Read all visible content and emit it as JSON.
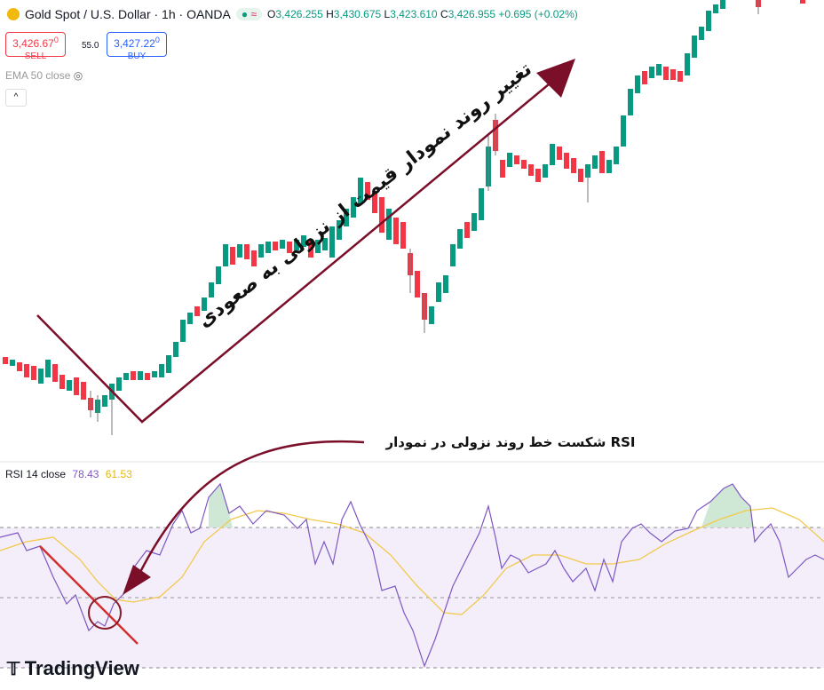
{
  "header": {
    "symbol": "Gold Spot / U.S. Dollar · 1h · OANDA",
    "ohlc": [
      {
        "label": "O",
        "value": "3,426.255"
      },
      {
        "label": "H",
        "value": "3,430.675"
      },
      {
        "label": "L",
        "value": "3,423.610"
      },
      {
        "label": "C",
        "value": "3,426.955"
      }
    ],
    "change": "+0.695 (+0.02%)"
  },
  "trade": {
    "sell": {
      "price": "3,426.67",
      "fraction": "0",
      "label": "SELL"
    },
    "spread": "55.0",
    "buy": {
      "price": "3,427.22",
      "fraction": "0",
      "label": "BUY"
    }
  },
  "indicator": "EMA 50 close",
  "annotations": {
    "trend": "تغییر روند نمودار قیمت از نزولی به صعودی",
    "rsi_break": "شکست خط روند نزولی در نمودار RSI"
  },
  "rsi": {
    "label": "RSI 14 close",
    "value": "78.43",
    "ma": "61.53"
  },
  "brand": "TradingView"
}
